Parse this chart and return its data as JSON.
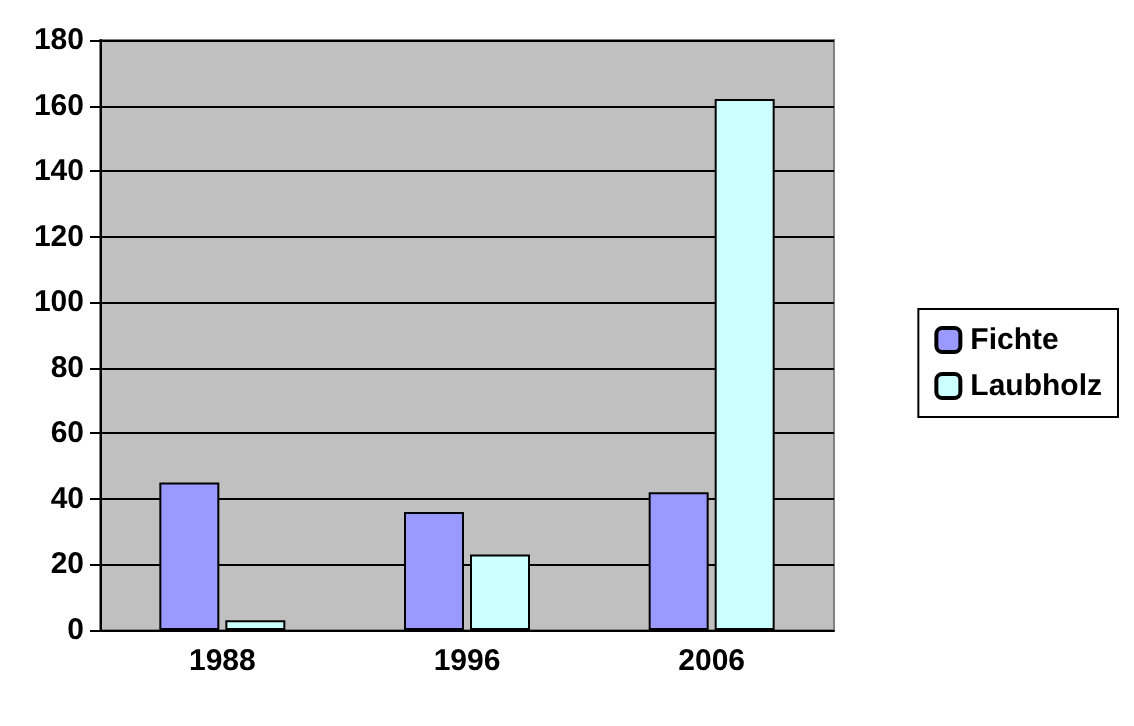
{
  "chart_data": {
    "type": "bar",
    "categories": [
      "1988",
      "1996",
      "2006"
    ],
    "series": [
      {
        "name": "Fichte",
        "color": "#9999ff",
        "values": [
          45,
          36,
          42
        ]
      },
      {
        "name": "Laubholz",
        "color": "#ccffff",
        "values": [
          3,
          23,
          162
        ]
      }
    ],
    "ylim": [
      0,
      180
    ],
    "yticks": [
      0,
      20,
      40,
      60,
      80,
      100,
      120,
      140,
      160,
      180
    ],
    "grid": "y",
    "legend": "right"
  }
}
